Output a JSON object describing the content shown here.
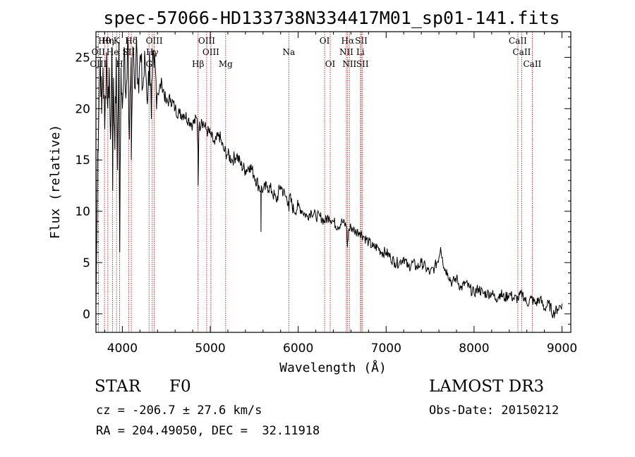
{
  "chart_data": {
    "type": "line",
    "title": "spec-57066-HD133738N334417M01_sp01-141.fits",
    "xlabel": "Wavelength (Å)",
    "ylabel": "Flux (relative)",
    "xlim": [
      3700,
      9100
    ],
    "ylim": [
      -1.8,
      27.5
    ],
    "xticks": [
      4000,
      5000,
      6000,
      7000,
      8000,
      9000
    ],
    "xtick_labels": [
      "4000",
      "5000",
      "6000",
      "7000",
      "8000",
      "9000"
    ],
    "yticks": [
      0,
      5,
      10,
      15,
      20,
      25
    ],
    "ytick_labels": [
      "0",
      "5",
      "10",
      "15",
      "20",
      "25"
    ],
    "grid": false,
    "series": [
      {
        "name": "spectrum",
        "x": [
          3700,
          3710,
          3720,
          3735,
          3750,
          3765,
          3780,
          3800,
          3820,
          3835,
          3850,
          3865,
          3880,
          3890,
          3900,
          3915,
          3930,
          3945,
          3960,
          3970,
          3985,
          4000,
          4020,
          4040,
          4060,
          4080,
          4100,
          4102,
          4120,
          4140,
          4160,
          4180,
          4200,
          4230,
          4260,
          4290,
          4310,
          4330,
          4340,
          4360,
          4400,
          4450,
          4500,
          4550,
          4600,
          4650,
          4700,
          4750,
          4800,
          4850,
          4860,
          4862,
          4870,
          4900,
          4950,
          5000,
          5050,
          5100,
          5150,
          5200,
          5250,
          5300,
          5350,
          5400,
          5450,
          5500,
          5550,
          5575,
          5577,
          5580,
          5600,
          5650,
          5700,
          5750,
          5800,
          5850,
          5890,
          5895,
          5900,
          5950,
          6000,
          6050,
          6100,
          6150,
          6200,
          6250,
          6300,
          6350,
          6400,
          6450,
          6500,
          6550,
          6560,
          6563,
          6570,
          6600,
          6650,
          6700,
          6750,
          6800,
          6850,
          6900,
          6950,
          7000,
          7050,
          7100,
          7150,
          7200,
          7250,
          7300,
          7350,
          7400,
          7450,
          7500,
          7550,
          7600,
          7620,
          7640,
          7660,
          7700,
          7750,
          7800,
          7850,
          7900,
          7950,
          8000,
          8050,
          8100,
          8150,
          8200,
          8250,
          8300,
          8350,
          8400,
          8450,
          8500,
          8550,
          8600,
          8650,
          8700,
          8750,
          8800,
          8850,
          8900,
          8950,
          9000
        ],
        "y": [
          0.5,
          8.0,
          16.0,
          21.0,
          25.0,
          19.5,
          24.0,
          18.0,
          25.5,
          20.0,
          24.0,
          17.0,
          26.0,
          12.0,
          23.0,
          16.0,
          25.0,
          14.0,
          26.5,
          6.0,
          24.0,
          20.0,
          26.0,
          21.0,
          27.0,
          17.0,
          25.0,
          15.0,
          26.0,
          22.0,
          27.0,
          23.0,
          25.0,
          22.0,
          24.5,
          21.0,
          25.5,
          19.0,
          23.0,
          24.0,
          21.5,
          22.5,
          20.5,
          21.0,
          20.0,
          19.5,
          19.5,
          19.0,
          18.5,
          19.0,
          16.0,
          12.5,
          18.0,
          19.0,
          18.0,
          17.5,
          16.5,
          17.5,
          16.0,
          15.5,
          15.0,
          15.5,
          14.5,
          14.0,
          14.5,
          13.5,
          12.5,
          12.0,
          8.0,
          12.5,
          12.0,
          12.5,
          12.0,
          11.0,
          12.5,
          11.5,
          11.0,
          10.0,
          11.5,
          10.0,
          10.5,
          10.0,
          9.5,
          10.0,
          9.5,
          9.5,
          9.0,
          9.5,
          9.0,
          8.5,
          9.0,
          8.5,
          6.5,
          7.0,
          8.0,
          8.5,
          8.0,
          8.0,
          7.5,
          7.0,
          6.5,
          6.5,
          6.0,
          6.0,
          5.5,
          5.0,
          5.0,
          5.5,
          4.5,
          5.0,
          4.5,
          5.0,
          4.5,
          4.0,
          4.5,
          5.5,
          6.5,
          5.5,
          4.5,
          4.0,
          3.0,
          3.5,
          2.5,
          3.0,
          2.5,
          2.0,
          2.5,
          2.0,
          2.0,
          2.0,
          1.5,
          2.0,
          1.5,
          2.0,
          1.5,
          1.5,
          2.0,
          1.0,
          1.5,
          1.0,
          1.5,
          0.5,
          1.0,
          0.0,
          0.5,
          1.0
        ]
      }
    ],
    "line_groups": [
      {
        "color": "#b22222",
        "row": 1,
        "lines": [
          {
            "label": "Hθ",
            "x": 3797
          },
          {
            "label": "Hη",
            "x": 3835
          },
          {
            "label": "K",
            "x": 3934
          },
          {
            "label": "Hδ",
            "x": 4102
          },
          {
            "label": "OIII",
            "x": 4363
          },
          {
            "label": "OIII",
            "x": 4959
          },
          {
            "label": "OI",
            "x": 6300
          },
          {
            "label": "Hα",
            "x": 6563
          },
          {
            "label": "SII",
            "x": 6717
          },
          {
            "label": "CaII",
            "x": 8498
          }
        ]
      },
      {
        "color": "#b22222",
        "row": 2,
        "lines": [
          {
            "label": "OII",
            "x": 3727
          },
          {
            "label": "He",
            "x": 3889
          },
          {
            "label": "SII",
            "x": 4072
          },
          {
            "label": "Hγ",
            "x": 4340
          },
          {
            "label": "OIII",
            "x": 5007
          },
          {
            "label": "Na",
            "x": 5893
          },
          {
            "label": "NII",
            "x": 6548
          },
          {
            "label": "Li",
            "x": 6708
          },
          {
            "label": "CaII",
            "x": 8542
          }
        ]
      },
      {
        "color": "#b22222",
        "row": 3,
        "lines": [
          {
            "label": "OIII",
            "x": 3727
          },
          {
            "label": "H",
            "x": 3969
          },
          {
            "label": "G",
            "x": 4304
          },
          {
            "label": "Hβ",
            "x": 4861
          },
          {
            "label": "Mg",
            "x": 5175
          },
          {
            "label": "OI",
            "x": 6364
          },
          {
            "label": "NII",
            "x": 6583
          },
          {
            "label": "SII",
            "x": 6731
          },
          {
            "label": "CaII",
            "x": 8662
          }
        ]
      }
    ]
  },
  "info": {
    "object_class": "STAR",
    "subclass": "F0",
    "survey": "LAMOST DR3",
    "redshift": "cz = -206.7 ± 27.6 km/s",
    "obs_date": "Obs-Date: 20150212",
    "coords": "RA = 204.49050, DEC =  32.11918"
  }
}
